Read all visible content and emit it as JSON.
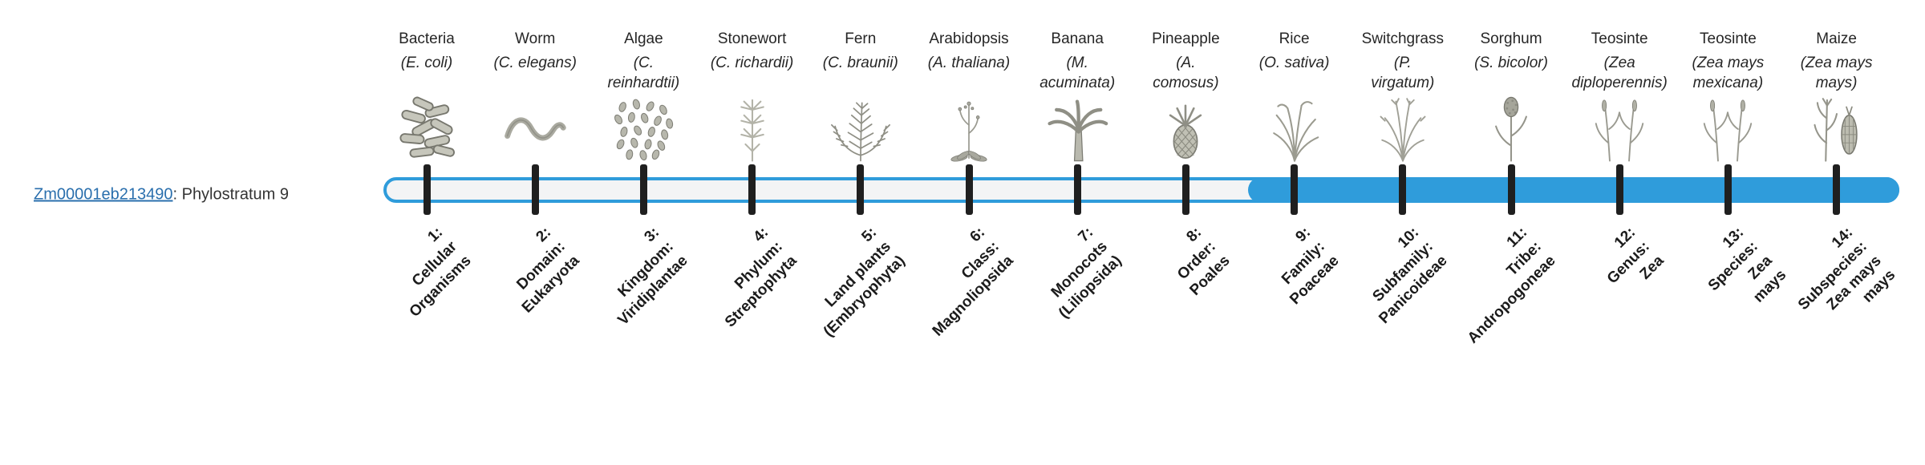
{
  "gene": {
    "id": "Zm00001eb213490",
    "label_suffix": ": Phylostratum 9",
    "phylostratum": 9,
    "link_color": "#2a6fad"
  },
  "bar": {
    "outline_color": "#2f9cdb",
    "fill_color": "#2f9cdb",
    "track_color": "#f3f4f5",
    "tick_color": "#1f1f1f"
  },
  "organisms": [
    {
      "name": "Bacteria",
      "scientific": "(E. coli)",
      "icon": "bacteria",
      "tick_label": "1:\nCellular\nOrganisms"
    },
    {
      "name": "Worm",
      "scientific": "(C. elegans)",
      "icon": "worm",
      "tick_label": "2:\nDomain:\nEukaryota"
    },
    {
      "name": "Algae",
      "scientific": "(C.\nreinhardtii)",
      "icon": "algae",
      "tick_label": "3:\nKingdom:\nViridiplantae"
    },
    {
      "name": "Stonewort",
      "scientific": "(C. richardii)",
      "icon": "stonewort",
      "tick_label": "4:\nPhylum:\nStreptophyta"
    },
    {
      "name": "Fern",
      "scientific": "(C. braunii)",
      "icon": "fern",
      "tick_label": "5:\nLand plants\n(Embryophyta)"
    },
    {
      "name": "Arabidopsis",
      "scientific": "(A. thaliana)",
      "icon": "arabidopsis",
      "tick_label": "6:\nClass:\nMagnoliopsida"
    },
    {
      "name": "Banana",
      "scientific": "(M.\nacuminata)",
      "icon": "banana",
      "tick_label": "7:\nMonocots\n(Liliopsida)"
    },
    {
      "name": "Pineapple",
      "scientific": "(A.\ncomosus)",
      "icon": "pineapple",
      "tick_label": "8:\nOrder:\nPoales"
    },
    {
      "name": "Rice",
      "scientific": "(O. sativa)",
      "icon": "rice",
      "tick_label": "9:\nFamily:\nPoaceae"
    },
    {
      "name": "Switchgrass",
      "scientific": "(P.\nvirgatum)",
      "icon": "switchgrass",
      "tick_label": "10:\nSubfamily:\nPanicoideae"
    },
    {
      "name": "Sorghum",
      "scientific": "(S. bicolor)",
      "icon": "sorghum",
      "tick_label": "11:\nTribe:\nAndropogoneae"
    },
    {
      "name": "Teosinte",
      "scientific": "(Zea\ndiploperennis)",
      "icon": "teosinte",
      "tick_label": "12:\nGenus:\nZea"
    },
    {
      "name": "Teosinte",
      "scientific": "(Zea mays\nmexicana)",
      "icon": "teosinte",
      "tick_label": "13:\nSpecies:\nZea\nmays"
    },
    {
      "name": "Maize",
      "scientific": "(Zea mays\nmays)",
      "icon": "maize",
      "tick_label": "14:\nSubspecies:\nZea mays\nmays"
    }
  ]
}
